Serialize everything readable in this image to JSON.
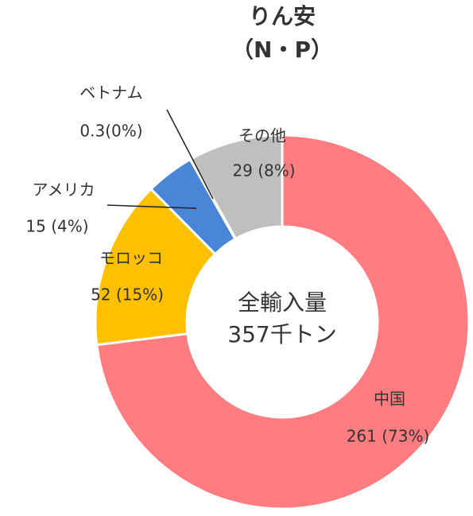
{
  "chart_data": {
    "type": "donut",
    "title": "りん安",
    "subtitle": "（N・P）",
    "center_label": [
      "全輸入量",
      "357千トン"
    ],
    "categories": [
      "中国",
      "モロッコ",
      "アメリカ",
      "ベトナム",
      "その他"
    ],
    "values": [
      261,
      52,
      15,
      0.3,
      29
    ],
    "value_labels": [
      "261 (73%)",
      "52 (15%)",
      "15 (4%)",
      "0.3(0%)",
      "29 (8%)"
    ],
    "colors": [
      "#ff7c80",
      "#ffc000",
      "#4a86d8",
      "#4a86d8",
      "#bfbfbf"
    ]
  }
}
